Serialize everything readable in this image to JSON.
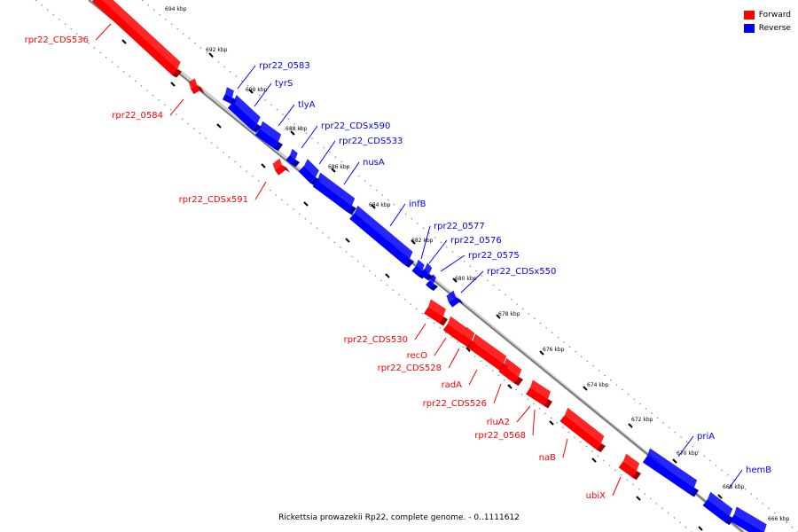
{
  "legend": [
    {
      "label": "Forward",
      "color": "#ff0000"
    },
    {
      "label": "Reverse",
      "color": "#0000ff"
    }
  ],
  "caption": "Rickettsia prowazekii Rp22, complete genome. - 0..1111612",
  "ticks": [
    "694 kbp",
    "692 kbp",
    "690 kbp",
    "688 kbp",
    "686 kbp",
    "684 kbp",
    "682 kbp",
    "680 kbp",
    "678 kbp",
    "676 kbp",
    "674 kbp",
    "672 kbp",
    "670 kbp",
    "668 kbp",
    "666 kbp"
  ],
  "colors": {
    "forward": "#ff0000",
    "reverse": "#0000ff",
    "backbone": "#888888"
  },
  "genes": [
    {
      "name": "rpr22_CDS536",
      "strand": "forward"
    },
    {
      "name": "rpr22_0583",
      "strand": "reverse"
    },
    {
      "name": "rpr22_0584",
      "strand": "forward"
    },
    {
      "name": "tyrS",
      "strand": "reverse"
    },
    {
      "name": "tlyA",
      "strand": "reverse"
    },
    {
      "name": "rpr22_CDSx590",
      "strand": "reverse"
    },
    {
      "name": "rpr22_CDS533",
      "strand": "reverse"
    },
    {
      "name": "nusA",
      "strand": "reverse"
    },
    {
      "name": "rpr22_CDSx591",
      "strand": "forward"
    },
    {
      "name": "infB",
      "strand": "reverse"
    },
    {
      "name": "rpr22_0577",
      "strand": "reverse"
    },
    {
      "name": "rpr22_0576",
      "strand": "reverse"
    },
    {
      "name": "rpr22_0575",
      "strand": "reverse"
    },
    {
      "name": "rpr22_CDSx550",
      "strand": "reverse"
    },
    {
      "name": "rpr22_CDS530",
      "strand": "forward"
    },
    {
      "name": "recO",
      "strand": "forward"
    },
    {
      "name": "rpr22_CDS528",
      "strand": "forward"
    },
    {
      "name": "radA",
      "strand": "forward"
    },
    {
      "name": "rpr22_CDS526",
      "strand": "forward"
    },
    {
      "name": "rluA2",
      "strand": "forward"
    },
    {
      "name": "rpr22_0568",
      "strand": "forward"
    },
    {
      "name": "naB",
      "strand": "forward"
    },
    {
      "name": "ubiX",
      "strand": "forward"
    },
    {
      "name": "priA",
      "strand": "reverse"
    },
    {
      "name": "hemB",
      "strand": "reverse"
    }
  ]
}
